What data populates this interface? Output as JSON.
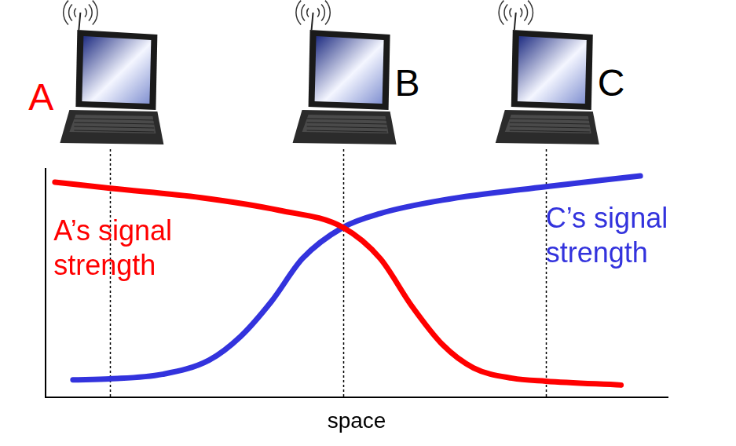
{
  "chart_data": {
    "type": "line",
    "x_label": "space",
    "xlim": [
      0,
      100
    ],
    "ylim": [
      0,
      100
    ],
    "xticks": [],
    "yticks": [],
    "grid": false,
    "tick_labels": false,
    "series": [
      {
        "color": "#ff0000",
        "x": [
          1.5,
          10.4,
          25,
          37.5,
          47.8,
          53.8,
          58.8,
          63.8,
          68.8,
          75,
          80.4,
          92.5
        ],
        "values": [
          94.2,
          91.5,
          87.4,
          81.9,
          74.4,
          60.8,
          40.3,
          23.2,
          13.0,
          8.5,
          7.2,
          5.5
        ]
      },
      {
        "color": "#3333dd",
        "x": [
          4.4,
          10.4,
          18.8,
          26.3,
          31.3,
          36.3,
          41.3,
          47.8,
          53.8,
          63.8,
          80.4,
          95.6
        ],
        "values": [
          7.8,
          8.2,
          10.2,
          16.4,
          26.6,
          42.0,
          60.8,
          74.4,
          80.5,
          86.3,
          92.2,
          96.9
        ]
      }
    ],
    "annotations": [
      {
        "text": "A’s signal\nstrength",
        "x": 1.3,
        "y": 78.5,
        "color": "#ff0000"
      },
      {
        "text": "C’s signal\nstrength",
        "x": 80.4,
        "y": 84,
        "color": "#3333dd"
      }
    ]
  },
  "nodes": [
    {
      "label": "A",
      "x": 10.4,
      "color": "#ff0000"
    },
    {
      "label": "B",
      "x": 47.8,
      "color": "#000000"
    },
    {
      "label": "C",
      "x": 80.4,
      "color": "#000000"
    }
  ]
}
